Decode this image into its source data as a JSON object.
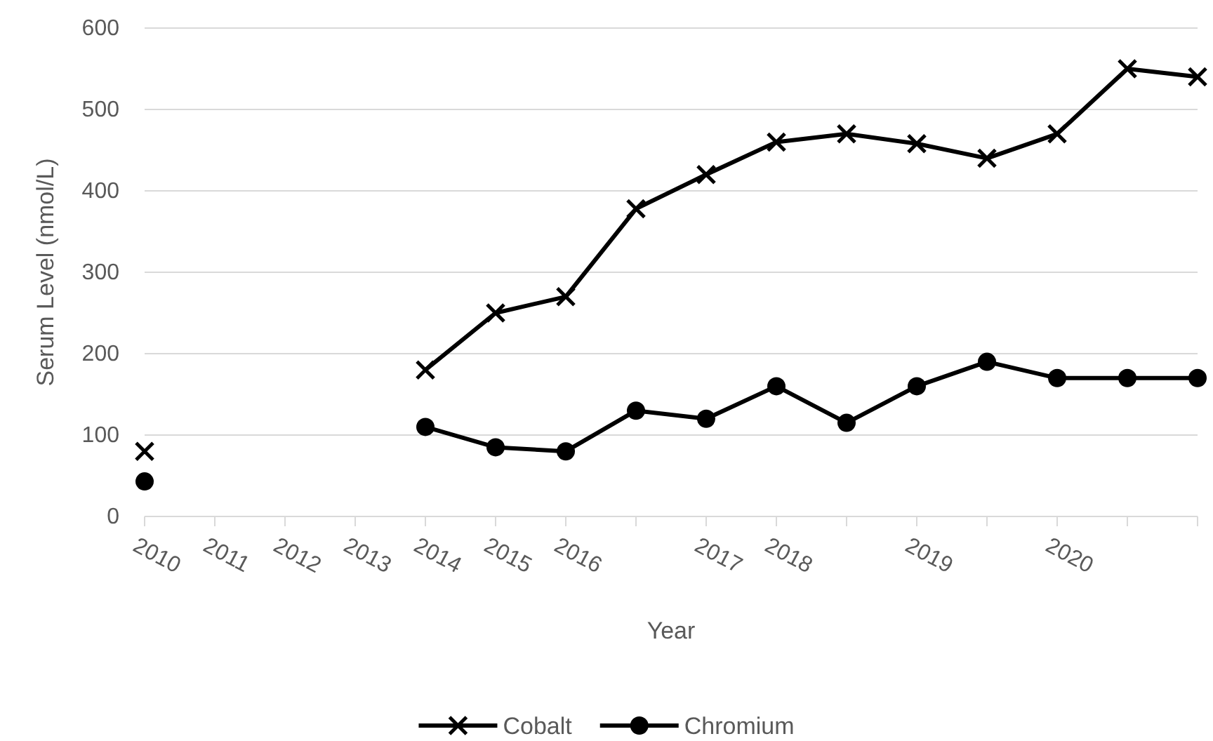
{
  "chart_data": {
    "type": "line",
    "xlabel": "Year",
    "ylabel": "Serum Level (nmol/L)",
    "categories": [
      "2010",
      "2011",
      "2012",
      "2013",
      "2014",
      "2015",
      "2016",
      null,
      "2017",
      "2018",
      null,
      "2019",
      null,
      "2020",
      null,
      null
    ],
    "series": [
      {
        "name": "Cobalt",
        "color": "#000000",
        "marker": "cross",
        "values": [
          80,
          null,
          null,
          null,
          180,
          250,
          270,
          378,
          420,
          460,
          470,
          458,
          440,
          470,
          550,
          540
        ]
      },
      {
        "name": "Chromium",
        "color": "#000000",
        "marker": "circle",
        "values": [
          43,
          null,
          null,
          null,
          110,
          85,
          80,
          130,
          120,
          160,
          115,
          160,
          190,
          170,
          170,
          170
        ]
      }
    ],
    "ylim": [
      0,
      600
    ],
    "yticks": [
      0,
      100,
      200,
      300,
      400,
      500,
      600
    ],
    "grid": "y",
    "legend": "bottom",
    "line_style": "solid"
  }
}
